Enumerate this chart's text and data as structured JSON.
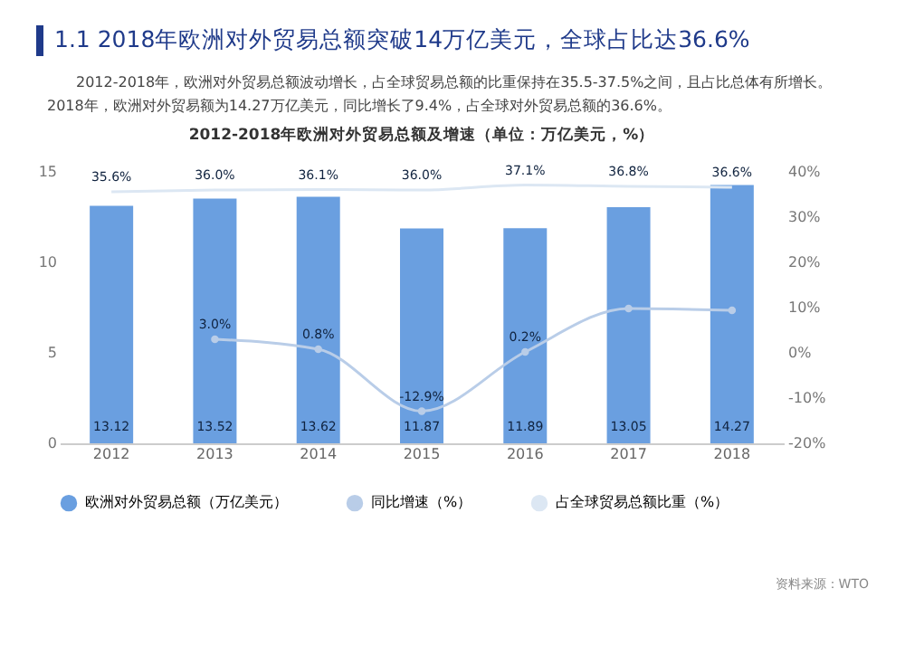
{
  "chart_data": {
    "type": "bar",
    "title": "1.1 2018年欧洲对外贸易总额突破14万亿美元，全球占比达36.6%",
    "subtitle": "2012-2018年欧洲对外贸易总额及增速（单位：万亿美元，%）",
    "annotations": [
      "2012-2018年，欧洲对外贸易总额波动增长，占全球贸易总额的比重保持在35.5-37.5%之间，且占比总体有所增长。2018年，欧洲对外贸易额为14.27万亿美元，同比增长了9.4%，占全球对外贸易总额的36.6%。",
      "资料来源：WTO"
    ],
    "categories": [
      "2012",
      "2013",
      "2014",
      "2015",
      "2016",
      "2017",
      "2018"
    ],
    "series": [
      {
        "name": "欧洲对外贸易总额（万亿美元）",
        "color": "#6a9fe0",
        "values": [
          13.12,
          13.52,
          13.62,
          11.87,
          11.89,
          13.05,
          14.27
        ],
        "value_labels": [
          "13.12",
          "13.52",
          "13.62",
          "11.87",
          "11.89",
          "13.05",
          "14.27"
        ]
      },
      {
        "name": "同比增速（%）",
        "type": "line",
        "axis": "y2",
        "marker": "circle",
        "color": "#b9cde8",
        "values": [
          null,
          3.0,
          0.8,
          -12.9,
          0.2,
          9.8,
          9.4
        ],
        "value_labels": [
          null,
          "3.0%",
          "0.8%",
          "-12.9%",
          "0.2%",
          null,
          null
        ]
      },
      {
        "name": "占全球贸易总额比重（%）",
        "type": "line",
        "axis": "y2",
        "color": "#dce7f3",
        "values": [
          35.6,
          36.0,
          36.1,
          36.0,
          37.1,
          36.8,
          36.6
        ],
        "value_labels": [
          "35.6%",
          "36.0%",
          "36.1%",
          "36.0%",
          "37.1%",
          "36.8%",
          "36.6%"
        ]
      }
    ],
    "ylim": [
      0,
      15
    ],
    "yticks": [
      0,
      5,
      10,
      15
    ],
    "y2lim": [
      -20,
      40
    ],
    "y2ticks": [
      {
        "value": -20,
        "label": "-20%"
      },
      {
        "value": -10,
        "label": "-10%"
      },
      {
        "value": 0,
        "label": "0%"
      },
      {
        "value": 10,
        "label": "10%"
      },
      {
        "value": 20,
        "label": "20%"
      },
      {
        "value": 30,
        "label": "30%"
      },
      {
        "value": 40,
        "label": "40%"
      }
    ],
    "legend": "bottom"
  }
}
